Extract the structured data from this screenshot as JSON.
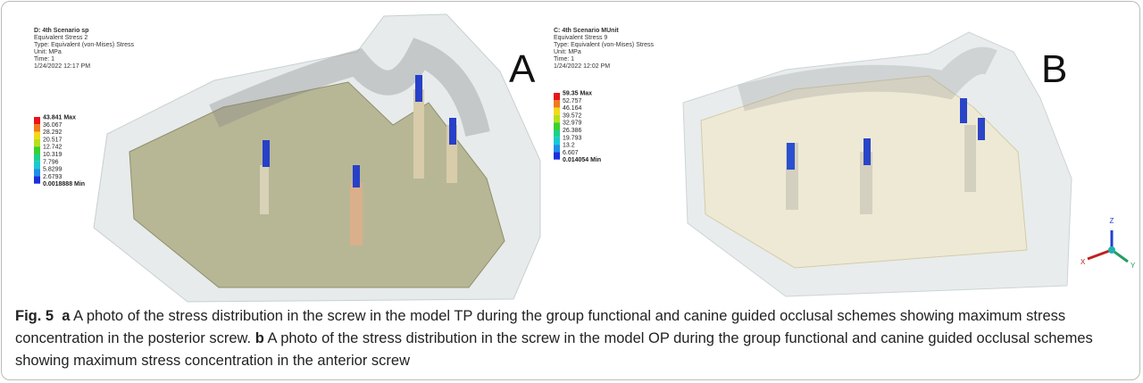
{
  "figure": {
    "panels": [
      {
        "label": "A",
        "header": [
          "D: 4th Scenario sp",
          "Equivalent Stress 2",
          "Type: Equivalent (von-Mises) Stress",
          "Unit: MPa",
          "Time: 1",
          "1/24/2022 12:17 PM"
        ],
        "legend": [
          "43.841 Max",
          "36.067",
          "28.292",
          "20.517",
          "12.742",
          "10.319",
          "7.796",
          "5.8299",
          "2.6793",
          "0.0018888 Min"
        ]
      },
      {
        "label": "B",
        "header": [
          "C: 4th Scenario MUnit",
          "Equivalent Stress 9",
          "Type: Equivalent (von-Mises) Stress",
          "Unit: MPa",
          "Time: 1",
          "1/24/2022 12:02 PM"
        ],
        "legend": [
          "59.35 Max",
          "52.757",
          "46.164",
          "39.572",
          "32.979",
          "26.386",
          "19.793",
          "13.2",
          "6.607",
          "0.014054 Min"
        ]
      }
    ],
    "axes": [
      "Z",
      "X",
      "Y"
    ]
  },
  "caption": {
    "figure_label": "Fig. 5",
    "parts": [
      {
        "label": "a",
        "text": "A photo of the stress distribution in the screw in the model TP during the group functional and canine guided occlusal schemes showing maximum stress concentration in the posterior screw."
      },
      {
        "label": "b",
        "text": "A photo of the stress distribution in the screw in the model OP during the group functional and canine guided occlusal schemes showing maximum stress concentration in the anterior screw"
      }
    ]
  }
}
